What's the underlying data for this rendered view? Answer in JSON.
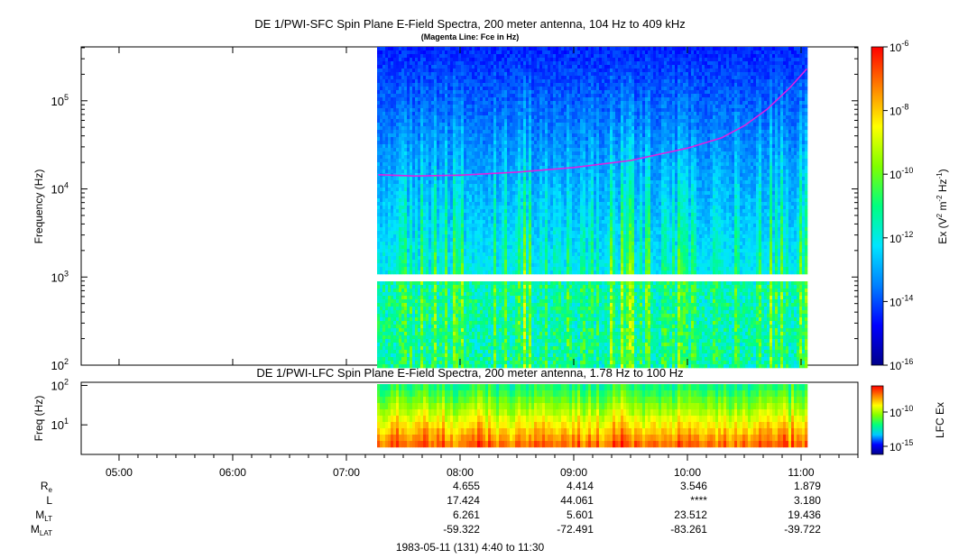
{
  "chart_data": [
    {
      "type": "heatmap",
      "title": "DE 1/PWI-SFC  Spin Plane E-Field Spectra, 200 meter antenna, 104 Hz to 409 kHz",
      "subtitle": "(Magenta Line: Fce in Hz)",
      "ylabel": "Frequency (Hz)",
      "yscale": "log",
      "ylim": [
        100,
        409000
      ],
      "y_ticks": [
        {
          "value": 100,
          "base": "10",
          "exp": "2"
        },
        {
          "value": 1000,
          "base": "10",
          "exp": "3"
        },
        {
          "value": 10000,
          "base": "10",
          "exp": "4"
        },
        {
          "value": 100000,
          "base": "10",
          "exp": "5"
        }
      ],
      "colorbar": {
        "label_parts": {
          "a": "Ex (V",
          "b": "2",
          "c": " m",
          "d": "-2",
          "e": " Hz",
          "f": "-1",
          "g": ")"
        },
        "scale": "log",
        "range": [
          1e-16,
          1e-06
        ],
        "ticks": [
          {
            "base": "10",
            "exp": "-6"
          },
          {
            "base": "10",
            "exp": "-8"
          },
          {
            "base": "10",
            "exp": "-10"
          },
          {
            "base": "10",
            "exp": "-12"
          },
          {
            "base": "10",
            "exp": "-14"
          },
          {
            "base": "10",
            "exp": "-16"
          }
        ],
        "colormap": [
          "#00008b",
          "#0000ff",
          "#0080ff",
          "#00e5ff",
          "#00ff80",
          "#80ff00",
          "#ffff00",
          "#ff8000",
          "#ff0000"
        ]
      },
      "data_coverage_hours": [
        7.27,
        11.05
      ],
      "fce_line": {
        "color": "#e020e0",
        "points": [
          [
            7.28,
            14500
          ],
          [
            7.6,
            14000
          ],
          [
            8.0,
            14300
          ],
          [
            8.5,
            15500
          ],
          [
            9.0,
            17500
          ],
          [
            9.5,
            21000
          ],
          [
            10.0,
            29000
          ],
          [
            10.3,
            38000
          ],
          [
            10.5,
            52000
          ],
          [
            10.7,
            80000
          ],
          [
            10.9,
            140000
          ],
          [
            11.05,
            230000
          ]
        ]
      }
    },
    {
      "type": "heatmap",
      "title": "DE 1/PWI-LFC  Spin Plane E-Field Spectra, 200 meter antenna, 1.78 Hz to 100 Hz",
      "ylabel": "Freq (Hz)",
      "yscale": "log",
      "ylim": [
        1.78,
        120
      ],
      "y_ticks": [
        {
          "value": 10,
          "base": "10",
          "exp": "1"
        },
        {
          "value": 100,
          "base": "10",
          "exp": "2"
        }
      ],
      "colorbar": {
        "label": "LFC Ex",
        "scale": "log",
        "ticks": [
          {
            "base": "10",
            "exp": "-10"
          },
          {
            "base": "10",
            "exp": "-15"
          }
        ],
        "colormap": [
          "#00008b",
          "#0000ff",
          "#00c8ff",
          "#00ff80",
          "#80ff00",
          "#ffff00",
          "#ff8000",
          "#ff0000"
        ]
      },
      "data_coverage_hours": [
        7.27,
        11.05
      ]
    }
  ],
  "time_axis": {
    "range_hours": [
      4.667,
      11.5
    ],
    "ticks": [
      {
        "hour": 5,
        "label": "05:00"
      },
      {
        "hour": 6,
        "label": "06:00"
      },
      {
        "hour": 7,
        "label": "07:00"
      },
      {
        "hour": 8,
        "label": "08:00"
      },
      {
        "hour": 9,
        "label": "09:00"
      },
      {
        "hour": 10,
        "label": "10:00"
      },
      {
        "hour": 11,
        "label": "11:00"
      }
    ]
  },
  "ephemeris": {
    "labels": {
      "re": {
        "base": "R",
        "sub": "e"
      },
      "l": {
        "base": "L",
        "sub": ""
      },
      "mlt": {
        "base": "M",
        "sub": "LT"
      },
      "mlat": {
        "base": "M",
        "sub": "LAT"
      }
    },
    "columns": [
      {
        "hour": 8,
        "re": "4.655",
        "l": "17.424",
        "mlt": "6.261",
        "mlat": "-59.322"
      },
      {
        "hour": 9,
        "re": "4.414",
        "l": "44.061",
        "mlt": "5.601",
        "mlat": "-72.491"
      },
      {
        "hour": 10,
        "re": "3.546",
        "l": "****",
        "mlt": "23.512",
        "mlat": "-83.261"
      },
      {
        "hour": 11,
        "re": "1.879",
        "l": "3.180",
        "mlt": "19.436",
        "mlat": "-39.722"
      }
    ]
  },
  "footer": "1983-05-11 (131) 4:40 to 11:30"
}
